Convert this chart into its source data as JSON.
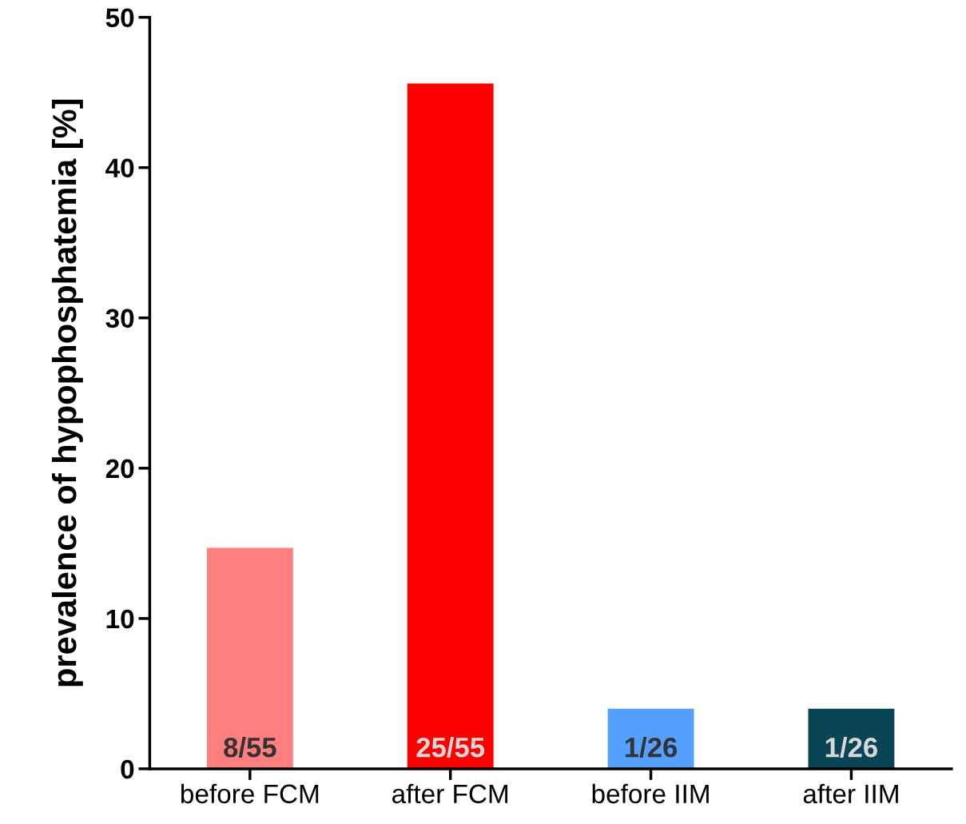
{
  "chart_data": {
    "type": "bar",
    "ylabel": "prevalence of hypophosphatemia [%]",
    "categories": [
      "before FCM",
      "after FCM",
      "before IIM",
      "after IIM"
    ],
    "values": [
      14.7,
      45.6,
      4.0,
      4.0
    ],
    "colors": [
      "#ff7f7f",
      "#ff0000",
      "#55a0ff",
      "#0a4555"
    ],
    "value_labels": [
      "8/55",
      "25/55",
      "1/26",
      "1/26"
    ],
    "ylim": [
      0,
      50
    ],
    "yticks": [
      0,
      10,
      20,
      30,
      40,
      50
    ],
    "grid": false,
    "legend": false
  }
}
